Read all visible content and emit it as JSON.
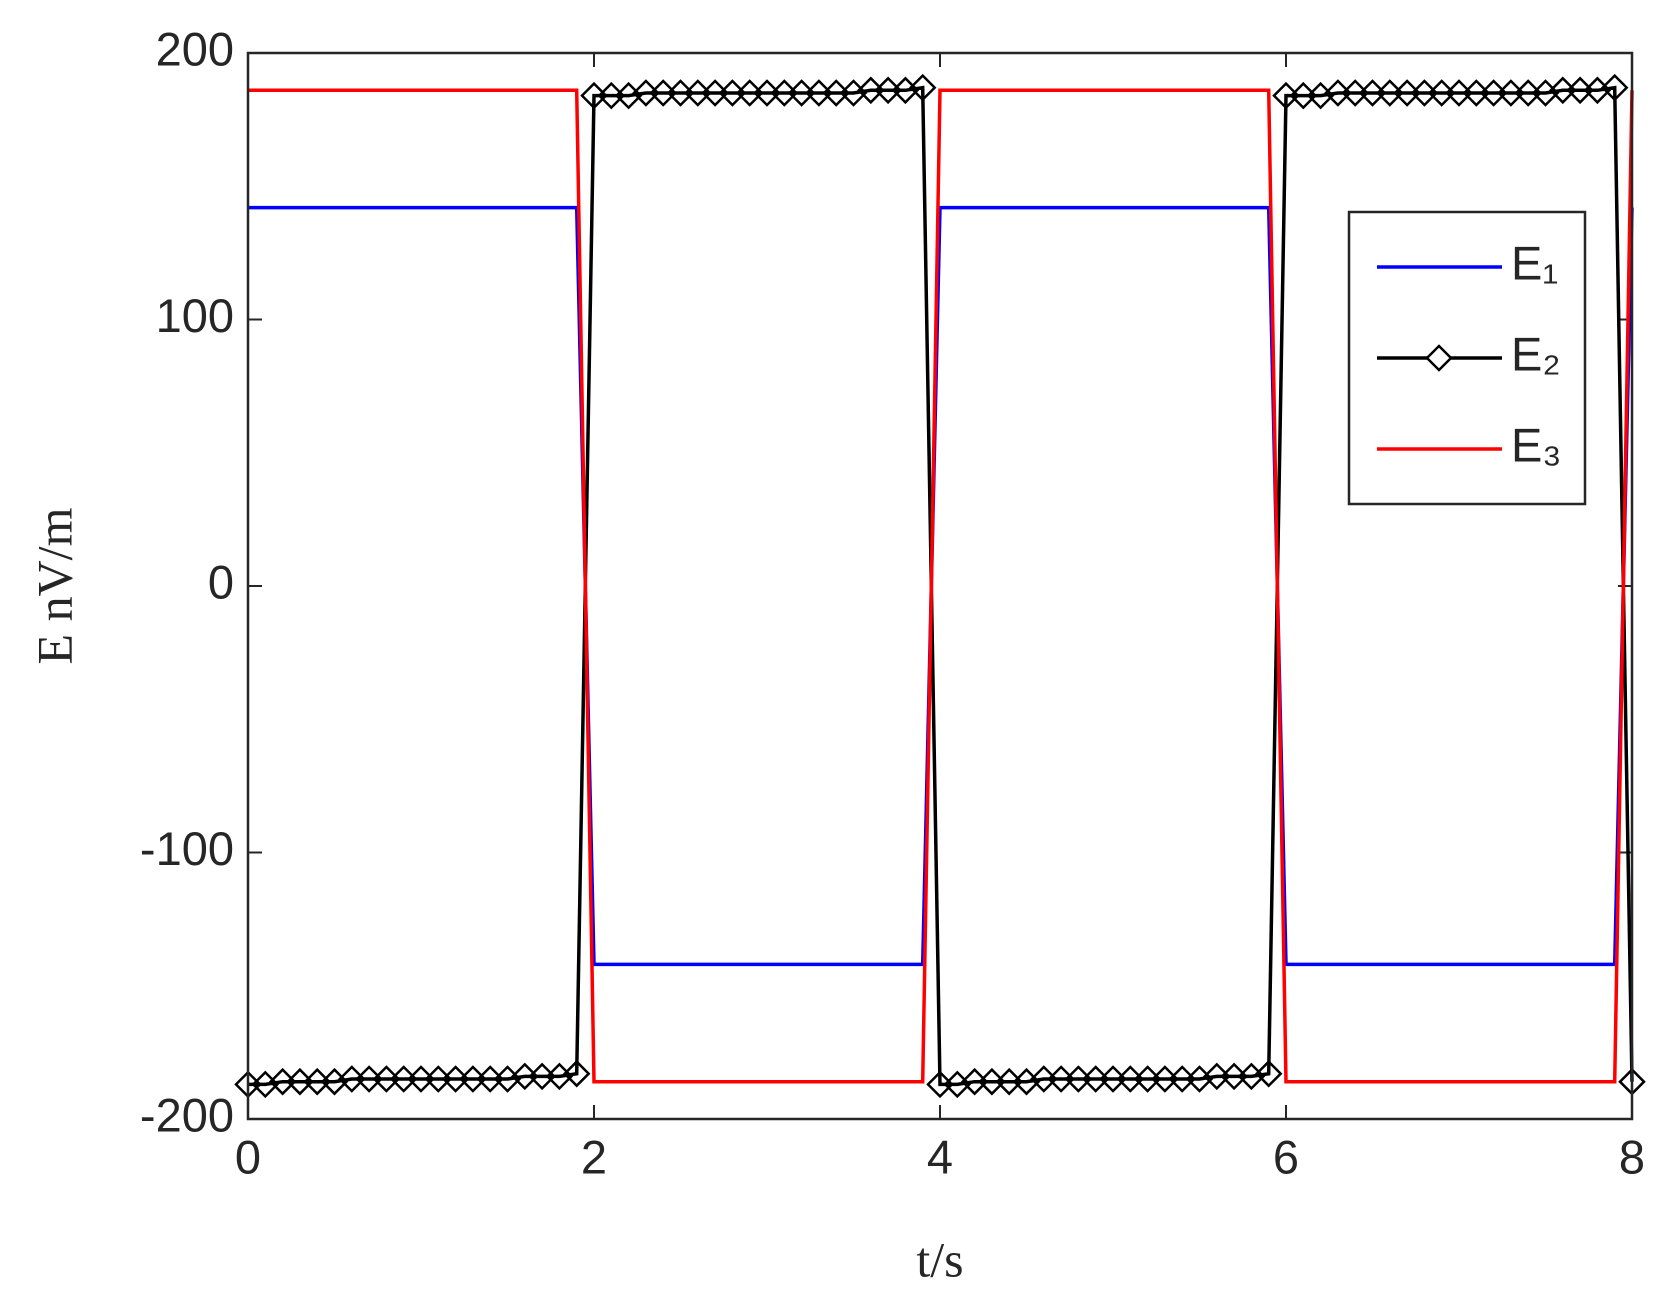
{
  "chart_data": {
    "type": "line",
    "xlabel": "t/s",
    "ylabel": "E nV/m",
    "xlim": [
      0,
      8
    ],
    "ylim": [
      -200,
      200
    ],
    "xticks": [
      0,
      2,
      4,
      6,
      8
    ],
    "yticks": [
      -200,
      -100,
      0,
      100,
      200
    ],
    "legend": "upper right",
    "x": [
      0,
      0.1,
      0.2,
      0.3,
      0.4,
      0.5,
      0.6,
      0.7,
      0.8,
      0.9,
      1,
      1.1,
      1.2,
      1.3,
      1.4,
      1.5,
      1.6,
      1.7,
      1.8,
      1.9,
      2,
      2.1,
      2.2,
      2.3,
      2.4,
      2.5,
      2.6,
      2.7,
      2.8,
      2.9,
      3,
      3.1,
      3.2,
      3.3,
      3.4,
      3.5,
      3.6,
      3.7,
      3.8,
      3.9,
      4,
      4.1,
      4.2,
      4.3,
      4.4,
      4.5,
      4.6,
      4.7,
      4.8,
      4.9,
      5,
      5.1,
      5.2,
      5.3,
      5.4,
      5.5,
      5.6,
      5.7,
      5.8,
      5.9,
      6,
      6.1,
      6.2,
      6.3,
      6.4,
      6.5,
      6.6,
      6.7,
      6.8,
      6.9,
      7,
      7.1,
      7.2,
      7.3,
      7.4,
      7.5,
      7.6,
      7.7,
      7.8,
      7.9,
      8
    ],
    "series": [
      {
        "name": "E₁",
        "color": "#0000ff",
        "marker": "none",
        "values": [
          142,
          142,
          142,
          142,
          142,
          142,
          142,
          142,
          142,
          142,
          142,
          142,
          142,
          142,
          142,
          142,
          142,
          142,
          142,
          142,
          -142,
          -142,
          -142,
          -142,
          -142,
          -142,
          -142,
          -142,
          -142,
          -142,
          -142,
          -142,
          -142,
          -142,
          -142,
          -142,
          -142,
          -142,
          -142,
          -142,
          142,
          142,
          142,
          142,
          142,
          142,
          142,
          142,
          142,
          142,
          142,
          142,
          142,
          142,
          142,
          142,
          142,
          142,
          142,
          142,
          -142,
          -142,
          -142,
          -142,
          -142,
          -142,
          -142,
          -142,
          -142,
          -142,
          -142,
          -142,
          -142,
          -142,
          -142,
          -142,
          -142,
          -142,
          -142,
          -142,
          142
        ]
      },
      {
        "name": "E₂",
        "color": "#000000",
        "marker": "diamond",
        "values": [
          -187,
          -187,
          -186,
          -186,
          -186,
          -186,
          -185,
          -185,
          -185,
          -185,
          -185,
          -185,
          -185,
          -185,
          -185,
          -185,
          -184,
          -184,
          -184,
          -183,
          184,
          184,
          184,
          185,
          185,
          185,
          185,
          185,
          185,
          185,
          185,
          185,
          185,
          185,
          185,
          185,
          186,
          186,
          186,
          187,
          -187,
          -187,
          -186,
          -186,
          -186,
          -186,
          -185,
          -185,
          -185,
          -185,
          -185,
          -185,
          -185,
          -185,
          -185,
          -185,
          -184,
          -184,
          -184,
          -183,
          184,
          184,
          184,
          185,
          185,
          185,
          185,
          185,
          185,
          185,
          185,
          185,
          185,
          185,
          185,
          185,
          186,
          186,
          186,
          187,
          -186
        ]
      },
      {
        "name": "E₃",
        "color": "#ff0000",
        "marker": "none",
        "values": [
          186,
          186,
          186,
          186,
          186,
          186,
          186,
          186,
          186,
          186,
          186,
          186,
          186,
          186,
          186,
          186,
          186,
          186,
          186,
          186,
          -186,
          -186,
          -186,
          -186,
          -186,
          -186,
          -186,
          -186,
          -186,
          -186,
          -186,
          -186,
          -186,
          -186,
          -186,
          -186,
          -186,
          -186,
          -186,
          -186,
          186,
          186,
          186,
          186,
          186,
          186,
          186,
          186,
          186,
          186,
          186,
          186,
          186,
          186,
          186,
          186,
          186,
          186,
          186,
          186,
          -186,
          -186,
          -186,
          -186,
          -186,
          -186,
          -186,
          -186,
          -186,
          -186,
          -186,
          -186,
          -186,
          -186,
          -186,
          -186,
          -186,
          -186,
          -186,
          -186,
          186
        ]
      }
    ]
  }
}
